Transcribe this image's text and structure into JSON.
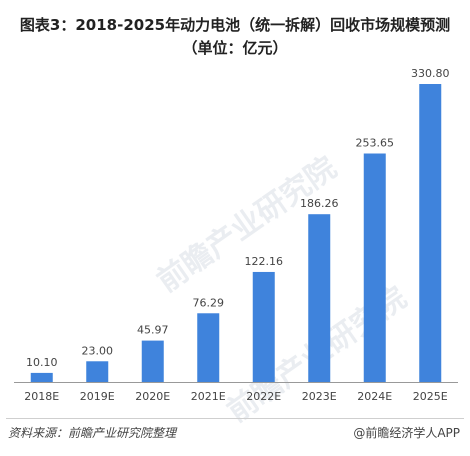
{
  "header": {
    "title_line1": "图表3：2018-2025年动力电池（统一拆解）回收市场规模预测",
    "title_line2": "（单位：亿元）"
  },
  "footer": {
    "source": "资料来源：前瞻产业研究院整理",
    "brand": "@前瞻经济学人APP"
  },
  "watermark": {
    "text": "前瞻产业研究院"
  },
  "colors": {
    "bar": "#3f83dc",
    "axis": "#999999",
    "label": "#444444"
  },
  "chart_data": {
    "type": "bar",
    "title": "图表3：2018-2025年动力电池（统一拆解）回收市场规模预测",
    "subtitle": "（单位：亿元）",
    "categories": [
      "2018E",
      "2019E",
      "2020E",
      "2021E",
      "2022E",
      "2023E",
      "2024E",
      "2025E"
    ],
    "values": [
      10.1,
      23.0,
      45.97,
      76.29,
      122.16,
      186.26,
      253.65,
      330.8
    ],
    "value_labels": [
      "10.10",
      "23.00",
      "45.97",
      "76.29",
      "122.16",
      "186.26",
      "253.65",
      "330.80"
    ],
    "xlabel": "",
    "ylabel": "",
    "ylim": [
      0,
      330.8
    ],
    "grid": false,
    "legend": "none"
  }
}
